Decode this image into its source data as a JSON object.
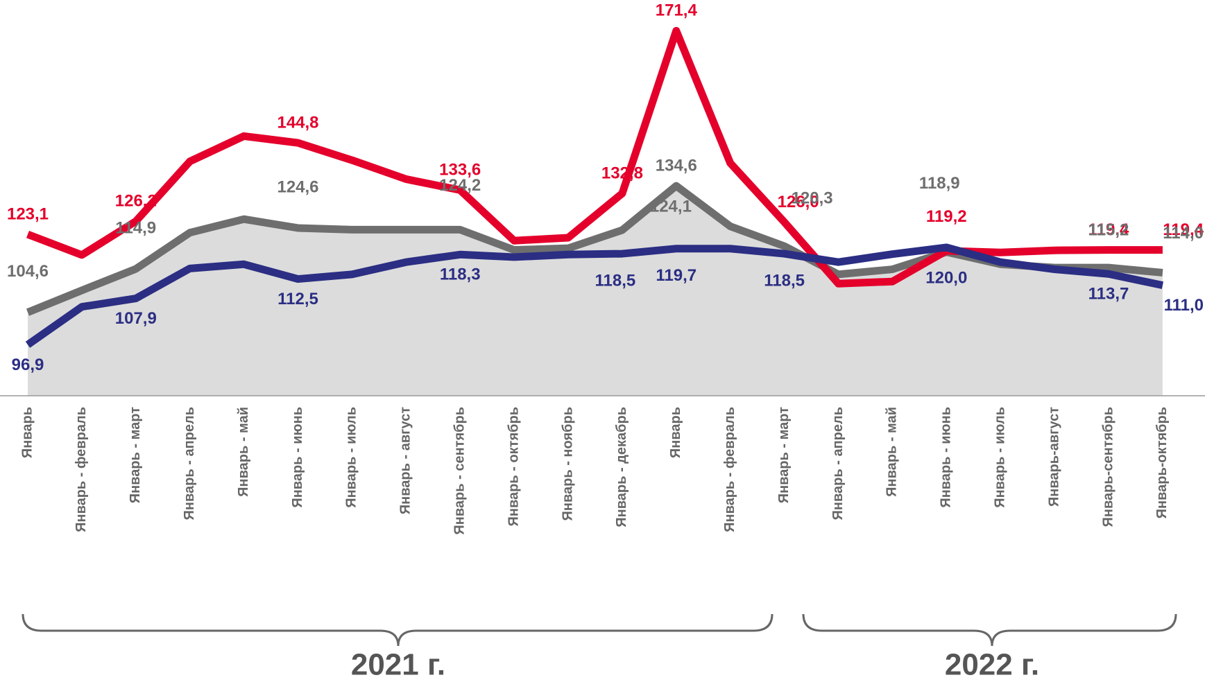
{
  "chart_data": {
    "type": "line",
    "categories": [
      "Январь",
      "Январь - февраль",
      "Январь - март",
      "Январь - апрель",
      "Январь - май",
      "Январь - июнь",
      "Январь - июль",
      "Январь - август",
      "Январь - сентябрь",
      "Январь - октябрь",
      "Январь - ноябрь",
      "Январь - декабрь",
      "Январь",
      "Январь - февраль",
      "Январь - март",
      "Январь - апрель",
      "Январь - май",
      "Январь - июнь",
      "Январь - июль",
      "Январь-август",
      "Январь-сентябрь",
      "Январь-октябрь"
    ],
    "groups": [
      "2021 г.",
      "2022 г."
    ],
    "ylim": [
      84.8,
      178.7
    ],
    "area_color": "#dcdcdc",
    "series": [
      {
        "color": "#e4002b",
        "values": [
          123.1,
          118.2,
          126.2,
          140.4,
          146.4,
          144.8,
          140.7,
          136.2,
          133.6,
          121.6,
          122.3,
          132.8,
          171.4,
          140.0,
          126.0,
          111.4,
          111.9,
          119.2,
          118.8,
          119.3,
          119.4,
          119.4
        ],
        "value_labels": [
          "123,1",
          null,
          "126,2",
          null,
          null,
          "144,8",
          null,
          null,
          "133,6",
          null,
          null,
          "132,8",
          "171,4",
          null,
          "126,0",
          null,
          null,
          "119,2",
          null,
          null,
          "119,4",
          "119,4"
        ]
      },
      {
        "color": "#6e6e6e",
        "area": true,
        "values": [
          104.6,
          109.8,
          114.9,
          123.5,
          126.7,
          124.6,
          124.2,
          124.2,
          124.2,
          119.4,
          119.8,
          124.1,
          134.6,
          125.0,
          120.3,
          113.6,
          114.8,
          118.9,
          116.0,
          115.2,
          115.2,
          114.0
        ],
        "value_labels": [
          "104,6",
          null,
          "114,9",
          null,
          null,
          "124,6",
          null,
          null,
          "124,2",
          null,
          null,
          "124,1",
          "134,6",
          null,
          "120,3",
          null,
          null,
          "118,9",
          null,
          null,
          "115,2",
          "114,0"
        ]
      },
      {
        "color": "#2b2e83",
        "values": [
          96.9,
          105.9,
          107.9,
          115.0,
          116.0,
          112.5,
          113.6,
          116.5,
          118.3,
          117.7,
          118.3,
          118.5,
          119.7,
          119.7,
          118.5,
          116.5,
          118.4,
          120.0,
          116.5,
          114.8,
          113.7,
          111.0
        ],
        "value_labels": [
          "96,9",
          null,
          "107,9",
          null,
          null,
          "112,5",
          null,
          null,
          "118,3",
          null,
          null,
          "118,5",
          "119,7",
          null,
          "118,5",
          null,
          null,
          "120,0",
          null,
          null,
          "113,7",
          "111,0"
        ]
      }
    ]
  }
}
